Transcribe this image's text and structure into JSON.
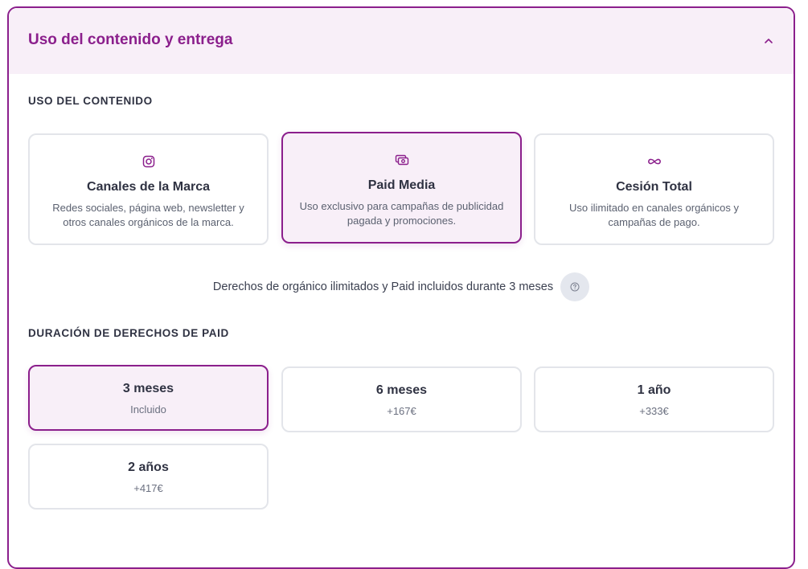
{
  "section": {
    "title": "Uso del contenido y entrega",
    "collapse_icon": "chevron-up-icon"
  },
  "usage": {
    "label": "USO DEL CONTENIDO",
    "options": [
      {
        "icon": "instagram-icon",
        "title": "Canales de la Marca",
        "description": "Redes sociales, página web, newsletter y otros canales orgánicos de la marca.",
        "selected": false
      },
      {
        "icon": "money-icon",
        "title": "Paid Media",
        "description": "Uso exclusivo para campañas de publicidad pagada y promociones.",
        "selected": true
      },
      {
        "icon": "infinity-icon",
        "title": "Cesión Total",
        "description": "Uso ilimitado en canales orgánicos y campañas de pago.",
        "selected": false
      }
    ],
    "note": "Derechos de orgánico ilimitados y Paid incluidos durante 3 meses",
    "help_icon": "help-circle-icon"
  },
  "duration": {
    "label": "DURACIÓN DE DERECHOS DE PAID",
    "options": [
      {
        "title": "3 meses",
        "price": "Incluido",
        "selected": true
      },
      {
        "title": "6 meses",
        "price": "+167€",
        "selected": false
      },
      {
        "title": "1 año",
        "price": "+333€",
        "selected": false
      },
      {
        "title": "2 años",
        "price": "+417€",
        "selected": false
      }
    ]
  },
  "colors": {
    "accent": "#8b1f8c",
    "accent_bg": "#f8eff8",
    "border": "#e3e5ea",
    "text": "#2f3242"
  }
}
